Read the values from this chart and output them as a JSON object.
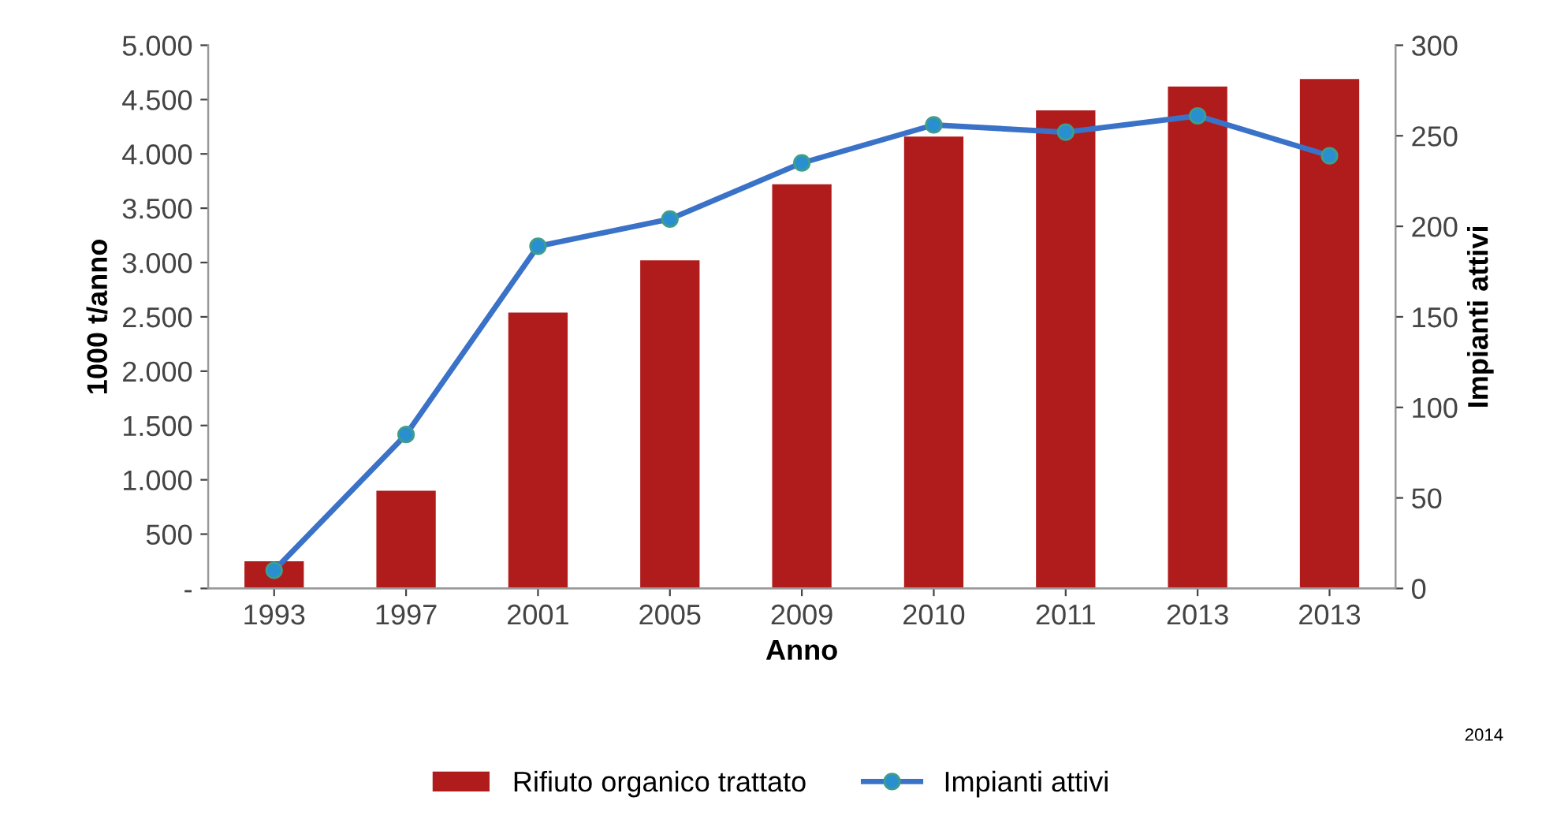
{
  "chart_data": {
    "type": "bar",
    "xlabel": "Anno",
    "ylabel": "1000 t/anno",
    "y2label": "Impianti attivi",
    "categories": [
      "1993",
      "1997",
      "2001",
      "2005",
      "2009",
      "2010",
      "2011",
      "2013",
      "2013"
    ],
    "series": [
      {
        "name": "Rifiuto organico trattato",
        "color": "#b01c1c",
        "values": [
          250,
          900,
          2540,
          3020,
          3720,
          4160,
          4400,
          4620,
          4690
        ]
      },
      {
        "name": "Impianti attivi",
        "type": "line",
        "axis": "y2",
        "color": "#3a72c8",
        "marker": "circle",
        "values": [
          10,
          85,
          189,
          204,
          235,
          256,
          252,
          261,
          239
        ]
      }
    ],
    "ylim": [
      0,
      5000
    ],
    "yticks": [
      {
        "value": 0,
        "label": "-"
      },
      500,
      {
        "value": 1000,
        "label": "1.000"
      },
      {
        "value": 1500,
        "label": "1.500"
      },
      {
        "value": 2000,
        "label": "2.000"
      },
      {
        "value": 2500,
        "label": "2.500"
      },
      {
        "value": 3000,
        "label": "3.000"
      },
      {
        "value": 3500,
        "label": "3.500"
      },
      {
        "value": 4000,
        "label": "4.000"
      },
      {
        "value": 4500,
        "label": "4.500"
      },
      {
        "value": 5000,
        "label": "5.000"
      }
    ],
    "y2lim": [
      0,
      300
    ],
    "y2ticks": [
      0,
      50,
      100,
      150,
      200,
      250,
      300
    ],
    "legend": "bottom",
    "grid": false,
    "annotations": [
      "2014"
    ]
  }
}
